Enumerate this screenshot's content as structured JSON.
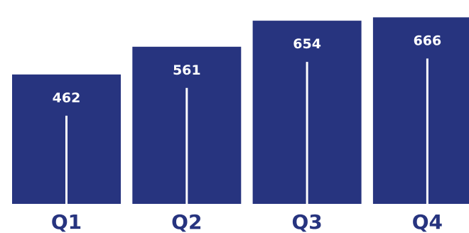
{
  "colors": {
    "bar": "#27347f",
    "line": "#ffffff",
    "value_text": "#ffffff",
    "category_text": "#27347f"
  },
  "chart_data": {
    "type": "bar",
    "categories": [
      "Q1",
      "Q2",
      "Q3",
      "Q4"
    ],
    "values": [
      462,
      561,
      654,
      666
    ],
    "title": "",
    "xlabel": "",
    "ylabel": "",
    "data_labels": [
      "462",
      "561",
      "654",
      "666"
    ],
    "grid": false,
    "legend": "none"
  }
}
